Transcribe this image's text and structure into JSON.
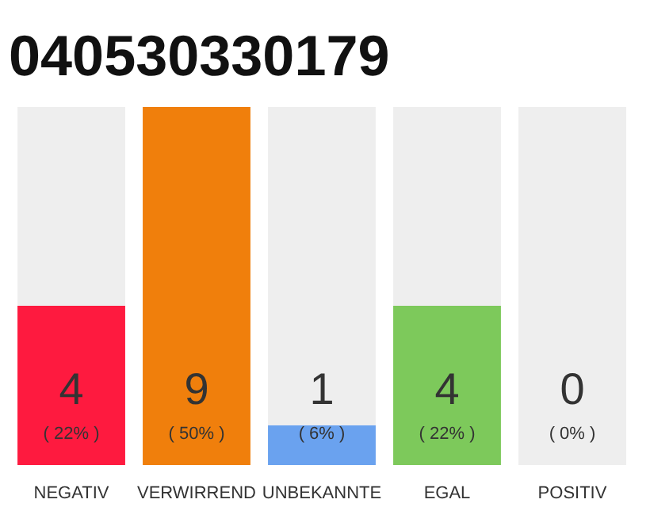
{
  "chart_data": {
    "type": "bar",
    "title": "040530330179",
    "stacked": true,
    "categories": [
      "NEGATIV",
      "VERWIRREND",
      "UNBEKANNTE",
      "EGAL",
      "POSITIV"
    ],
    "series": [
      {
        "colors": [
          "#fe1a3f",
          "#f07f0c",
          "#6aa2ef",
          "#7dc95b",
          "#cccccc"
        ],
        "values": [
          4,
          9,
          1,
          4,
          0
        ],
        "value_labels": [
          "4",
          "9",
          "1",
          "4",
          null
        ]
      },
      {
        "color": "#eeeeee",
        "values": [
          5,
          0,
          8,
          5,
          9
        ]
      }
    ],
    "ylim": [
      0,
      9
    ],
    "tick_labels": "x",
    "grid": false,
    "annotations": [
      "( 22% )",
      "( 50% )",
      "( 6% )",
      "( 22% )",
      "( 0% )",
      "0"
    ]
  }
}
